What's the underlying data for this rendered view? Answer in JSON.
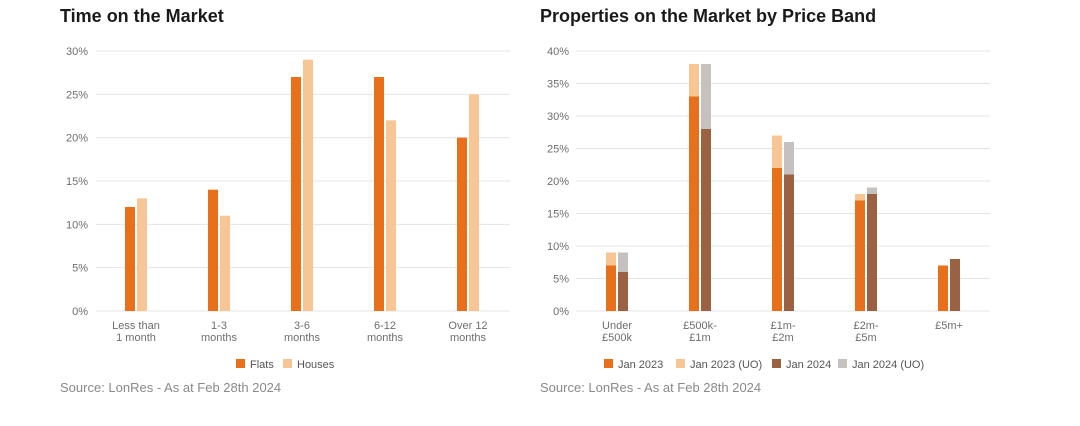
{
  "colors": {
    "flats": "#e8701a",
    "houses": "#f8c595",
    "jan2023": "#e8701a",
    "jan2023_uo": "#f8c595",
    "jan2024": "#9a6242",
    "jan2024_uo": "#c4c1bf",
    "grid": "#e4e4e4",
    "axis_text": "#6e6e6e"
  },
  "chart_data": [
    {
      "type": "bar",
      "title": "Time on the Market",
      "source": "Source: LonRes - As at Feb 28th 2024",
      "categories": [
        [
          "Less than",
          "1 month"
        ],
        [
          "1-3",
          "months"
        ],
        [
          "3-6",
          "months"
        ],
        [
          "6-12",
          "months"
        ],
        [
          "Over 12",
          "months"
        ]
      ],
      "yticks": [
        "0%",
        "5%",
        "10%",
        "15%",
        "20%",
        "25%",
        "30%"
      ],
      "ylim": [
        0,
        30
      ],
      "grid": true,
      "legend_position": "bottom",
      "series": [
        {
          "name": "Flats",
          "values": [
            12,
            14,
            27,
            27,
            20
          ]
        },
        {
          "name": "Houses",
          "values": [
            13,
            11,
            29,
            22,
            25
          ]
        }
      ]
    },
    {
      "type": "bar",
      "stacked_pairs": true,
      "title": "Properties on the Market by Price Band",
      "source": "Source: LonRes - As at Feb 28th 2024",
      "categories": [
        [
          "Under",
          "£500k"
        ],
        [
          "£500k-",
          "£1m"
        ],
        [
          "£1m-",
          "£2m"
        ],
        [
          "£2m-",
          "£5m"
        ],
        [
          "£5m+"
        ]
      ],
      "yticks": [
        "0%",
        "5%",
        "10%",
        "15%",
        "20%",
        "25%",
        "30%",
        "35%",
        "40%"
      ],
      "ylim": [
        0,
        40
      ],
      "grid": true,
      "legend_position": "bottom",
      "series": [
        {
          "name": "Jan 2023",
          "values": [
            7,
            33,
            22,
            17,
            7
          ]
        },
        {
          "name": "Jan 2023 (UO)",
          "values": [
            2,
            5,
            5,
            1,
            0
          ]
        },
        {
          "name": "Jan 2024",
          "values": [
            6,
            28,
            21,
            18,
            8
          ]
        },
        {
          "name": "Jan 2024 (UO)",
          "values": [
            3,
            10,
            5,
            1,
            0
          ]
        }
      ]
    }
  ]
}
